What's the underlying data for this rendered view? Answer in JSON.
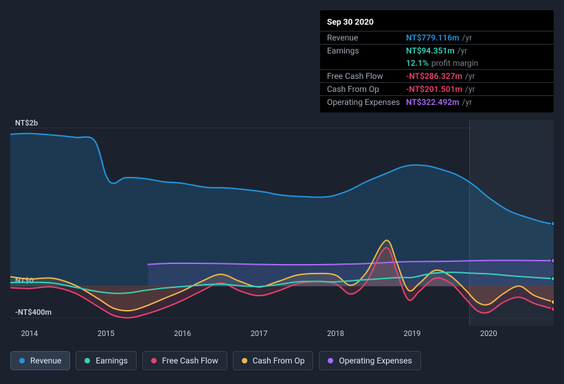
{
  "background_color": "#1b222d",
  "tooltip": {
    "date": "Sep 30 2020",
    "rows": [
      {
        "label": "Revenue",
        "value": "NT$779.116m",
        "color": "#2394df",
        "suffix": "/yr",
        "border": true
      },
      {
        "label": "Earnings",
        "value": "NT$94.351m",
        "color": "#35d0ba",
        "suffix": "/yr",
        "border": true
      },
      {
        "label": "",
        "value": "12.1%",
        "color": "#35d0ba",
        "suffix": "profit margin",
        "border": false
      },
      {
        "label": "Free Cash Flow",
        "value": "-NT$286.327m",
        "color": "#e8416f",
        "suffix": "/yr",
        "border": true
      },
      {
        "label": "Cash From Op",
        "value": "-NT$201.501m",
        "color": "#e8416f",
        "suffix": "/yr",
        "border": true
      },
      {
        "label": "Operating Expenses",
        "value": "NT$322.492m",
        "color": "#a86bf5",
        "suffix": "/yr",
        "border": true
      }
    ]
  },
  "chart": {
    "type": "area",
    "x_domain": [
      2013.75,
      2020.85
    ],
    "y_domain": [
      -500,
      2100
    ],
    "y_ticks": [
      {
        "v": 2000,
        "label": "NT$2b"
      },
      {
        "v": 0,
        "label": "NT$0"
      },
      {
        "v": -400,
        "label": "-NT$400m"
      }
    ],
    "x_ticks": [
      2014,
      2015,
      2016,
      2017,
      2018,
      2019,
      2020
    ],
    "plot_bg": "#1b222d",
    "grid_color": "#2b313c",
    "future_shade_start_x": 2019.75,
    "future_shade_color": "#232b38",
    "hover_x": 2019.75,
    "hover_line_color": "#3a424f",
    "series": [
      {
        "name": "Revenue",
        "color": "#2394df",
        "fill_opacity": 0.2,
        "line_width": 2,
        "legend_active": true,
        "points": [
          [
            2013.75,
            1920
          ],
          [
            2014.0,
            1930
          ],
          [
            2014.3,
            1910
          ],
          [
            2014.6,
            1880
          ],
          [
            2014.85,
            1840
          ],
          [
            2015.0,
            1400
          ],
          [
            2015.1,
            1300
          ],
          [
            2015.25,
            1370
          ],
          [
            2015.5,
            1360
          ],
          [
            2015.75,
            1320
          ],
          [
            2016.0,
            1300
          ],
          [
            2016.3,
            1250
          ],
          [
            2016.6,
            1240
          ],
          [
            2017.0,
            1200
          ],
          [
            2017.3,
            1150
          ],
          [
            2017.6,
            1130
          ],
          [
            2017.9,
            1130
          ],
          [
            2018.15,
            1200
          ],
          [
            2018.4,
            1320
          ],
          [
            2018.65,
            1420
          ],
          [
            2018.85,
            1500
          ],
          [
            2019.0,
            1530
          ],
          [
            2019.2,
            1520
          ],
          [
            2019.4,
            1470
          ],
          [
            2019.6,
            1400
          ],
          [
            2019.8,
            1280
          ],
          [
            2020.0,
            1120
          ],
          [
            2020.25,
            960
          ],
          [
            2020.5,
            870
          ],
          [
            2020.75,
            800
          ],
          [
            2020.85,
            790
          ]
        ]
      },
      {
        "name": "Operating Expenses",
        "color": "#a86bf5",
        "fill_opacity": 0.12,
        "line_width": 2,
        "legend_active": false,
        "points": [
          [
            2015.55,
            275
          ],
          [
            2015.75,
            285
          ],
          [
            2016.0,
            290
          ],
          [
            2016.5,
            285
          ],
          [
            2017.0,
            275
          ],
          [
            2017.5,
            270
          ],
          [
            2018.0,
            275
          ],
          [
            2018.5,
            290
          ],
          [
            2018.8,
            305
          ],
          [
            2019.0,
            310
          ],
          [
            2019.5,
            315
          ],
          [
            2020.0,
            325
          ],
          [
            2020.5,
            325
          ],
          [
            2020.85,
            322
          ]
        ]
      },
      {
        "name": "Free Cash Flow",
        "color": "#e8416f",
        "fill_opacity": 0.15,
        "line_width": 2,
        "legend_active": false,
        "points": [
          [
            2013.75,
            -20
          ],
          [
            2014.0,
            -30
          ],
          [
            2014.3,
            -10
          ],
          [
            2014.6,
            -90
          ],
          [
            2014.9,
            -260
          ],
          [
            2015.1,
            -370
          ],
          [
            2015.3,
            -400
          ],
          [
            2015.5,
            -360
          ],
          [
            2015.75,
            -280
          ],
          [
            2016.0,
            -180
          ],
          [
            2016.25,
            -60
          ],
          [
            2016.5,
            40
          ],
          [
            2016.75,
            -60
          ],
          [
            2017.0,
            -120
          ],
          [
            2017.25,
            -60
          ],
          [
            2017.5,
            30
          ],
          [
            2017.75,
            60
          ],
          [
            2018.0,
            30
          ],
          [
            2018.2,
            -100
          ],
          [
            2018.4,
            50
          ],
          [
            2018.6,
            430
          ],
          [
            2018.7,
            460
          ],
          [
            2018.8,
            180
          ],
          [
            2018.95,
            -170
          ],
          [
            2019.1,
            -60
          ],
          [
            2019.3,
            100
          ],
          [
            2019.5,
            40
          ],
          [
            2019.7,
            -160
          ],
          [
            2019.85,
            -310
          ],
          [
            2020.0,
            -330
          ],
          [
            2020.2,
            -200
          ],
          [
            2020.4,
            -140
          ],
          [
            2020.6,
            -220
          ],
          [
            2020.85,
            -290
          ]
        ]
      },
      {
        "name": "Cash From Op",
        "color": "#eeb64e",
        "fill_opacity": 0.12,
        "line_width": 2,
        "legend_active": false,
        "points": [
          [
            2013.75,
            120
          ],
          [
            2014.0,
            90
          ],
          [
            2014.3,
            100
          ],
          [
            2014.6,
            10
          ],
          [
            2014.9,
            -160
          ],
          [
            2015.1,
            -280
          ],
          [
            2015.3,
            -310
          ],
          [
            2015.5,
            -260
          ],
          [
            2015.75,
            -160
          ],
          [
            2016.0,
            -60
          ],
          [
            2016.25,
            60
          ],
          [
            2016.5,
            150
          ],
          [
            2016.75,
            60
          ],
          [
            2017.0,
            -10
          ],
          [
            2017.25,
            60
          ],
          [
            2017.5,
            140
          ],
          [
            2017.75,
            160
          ],
          [
            2018.0,
            140
          ],
          [
            2018.2,
            10
          ],
          [
            2018.4,
            170
          ],
          [
            2018.6,
            520
          ],
          [
            2018.7,
            560
          ],
          [
            2018.8,
            300
          ],
          [
            2018.95,
            -50
          ],
          [
            2019.1,
            40
          ],
          [
            2019.3,
            200
          ],
          [
            2019.5,
            130
          ],
          [
            2019.7,
            -50
          ],
          [
            2019.85,
            -200
          ],
          [
            2020.0,
            -230
          ],
          [
            2020.2,
            -90
          ],
          [
            2020.4,
            0
          ],
          [
            2020.6,
            -120
          ],
          [
            2020.85,
            -200
          ]
        ]
      },
      {
        "name": "Earnings",
        "color": "#35d0ba",
        "fill_opacity": 0.0,
        "line_width": 2,
        "legend_active": false,
        "points": [
          [
            2013.75,
            45
          ],
          [
            2014.0,
            50
          ],
          [
            2014.3,
            40
          ],
          [
            2014.6,
            -15
          ],
          [
            2014.9,
            -70
          ],
          [
            2015.1,
            -90
          ],
          [
            2015.3,
            -85
          ],
          [
            2015.5,
            -55
          ],
          [
            2015.75,
            -25
          ],
          [
            2016.0,
            -5
          ],
          [
            2016.25,
            15
          ],
          [
            2016.5,
            25
          ],
          [
            2016.75,
            5
          ],
          [
            2017.0,
            -5
          ],
          [
            2017.25,
            20
          ],
          [
            2017.5,
            55
          ],
          [
            2017.75,
            60
          ],
          [
            2018.0,
            55
          ],
          [
            2018.3,
            75
          ],
          [
            2018.6,
            95
          ],
          [
            2018.85,
            110
          ],
          [
            2019.0,
            110
          ],
          [
            2019.25,
            160
          ],
          [
            2019.5,
            175
          ],
          [
            2019.75,
            165
          ],
          [
            2020.0,
            155
          ],
          [
            2020.3,
            130
          ],
          [
            2020.6,
            110
          ],
          [
            2020.85,
            95
          ]
        ]
      }
    ],
    "legend_order": [
      "Revenue",
      "Earnings",
      "Free Cash Flow",
      "Cash From Op",
      "Operating Expenses"
    ]
  }
}
